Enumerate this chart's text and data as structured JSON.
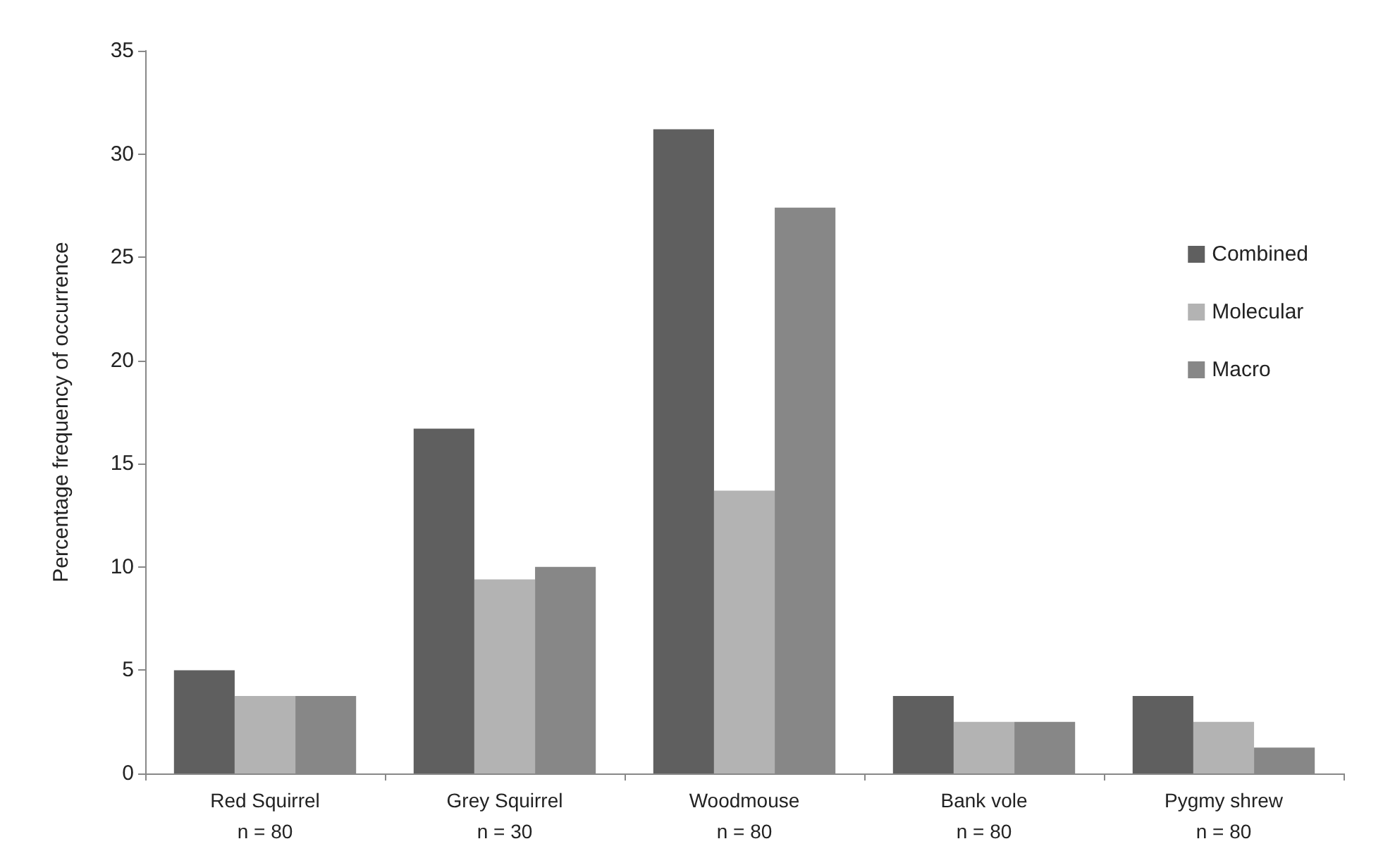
{
  "chart_data": {
    "type": "bar",
    "ylabel": "Percentage frequency of occurrence",
    "categories": [
      "Red Squirrel\nn = 80",
      "Grey Squirrel\nn = 30",
      "Woodmouse\nn = 80",
      "Bank vole\nn = 80",
      "Pygmy shrew\nn = 80"
    ],
    "series": [
      {
        "name": "Combined",
        "color": "#5f5f5f",
        "values": [
          5,
          16.7,
          31.2,
          3.75,
          3.75
        ]
      },
      {
        "name": "Molecular",
        "color": "#b3b3b3",
        "values": [
          3.75,
          9.4,
          13.7,
          2.5,
          2.5
        ]
      },
      {
        "name": "Macro",
        "color": "#878787",
        "values": [
          3.75,
          10,
          27.4,
          2.5,
          1.25
        ]
      }
    ],
    "ylim": [
      0,
      35
    ],
    "yticks": [
      0,
      5,
      10,
      15,
      20,
      25,
      30,
      35
    ],
    "grid": false,
    "legend": "right"
  }
}
